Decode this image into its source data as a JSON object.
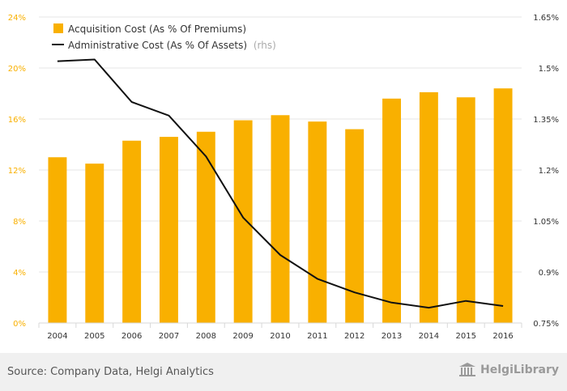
{
  "chart_data": {
    "type": "bar",
    "categories": [
      "2004",
      "2005",
      "2006",
      "2007",
      "2008",
      "2009",
      "2010",
      "2011",
      "2012",
      "2013",
      "2014",
      "2015",
      "2016"
    ],
    "series": [
      {
        "name": "Acquisition Cost (As % Of Premiums)",
        "type": "bar",
        "axis": "left",
        "color": "#f9b000",
        "values": [
          13.0,
          12.5,
          14.3,
          14.6,
          15.0,
          15.9,
          16.3,
          15.8,
          15.2,
          17.6,
          18.1,
          17.7,
          18.4
        ]
      },
      {
        "name": "Administrative Cost (As % Of Assets)",
        "legend_suffix": "(rhs)",
        "type": "line",
        "axis": "right",
        "color": "#111111",
        "values": [
          1.52,
          1.525,
          1.4,
          1.36,
          1.24,
          1.06,
          0.95,
          0.88,
          0.84,
          0.81,
          0.795,
          0.815,
          0.8
        ]
      }
    ],
    "y_left": {
      "min": 0,
      "max": 24,
      "ticks": [
        "0%",
        "4%",
        "8%",
        "12%",
        "16%",
        "20%",
        "24%"
      ],
      "color": "#f9b000"
    },
    "y_right": {
      "min": 0.75,
      "max": 1.65,
      "ticks": [
        "0.75%",
        "0.9%",
        "1.05%",
        "1.2%",
        "1.35%",
        "1.5%",
        "1.65%"
      ]
    },
    "grid": true,
    "legend_position": "top-left"
  },
  "footer": {
    "source": "Source: Company Data, Helgi Analytics",
    "logo_text": "HelgiLibrary"
  },
  "icons": {
    "logo": "library-building-icon"
  }
}
